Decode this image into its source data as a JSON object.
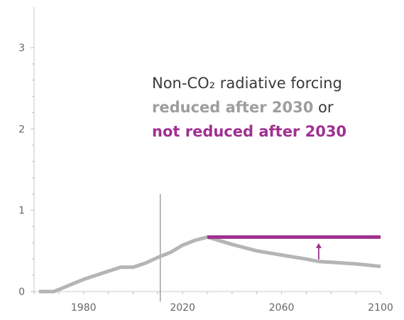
{
  "chart_data": {
    "type": "line",
    "title": "",
    "xlabel": "",
    "ylabel": "",
    "xlim": [
      1960,
      2100
    ],
    "ylim": [
      0,
      3.4
    ],
    "x_ticks": [
      1980,
      2020,
      2060,
      2100
    ],
    "y_ticks": [
      0,
      1,
      2,
      3
    ],
    "grid": false,
    "reference_line_x": 2011,
    "series": [
      {
        "color": "#b5b5b5",
        "x": [
          1962,
          1968,
          1972,
          1976,
          1980,
          1985,
          1990,
          1995,
          2000,
          2005,
          2010,
          2015,
          2020,
          2025,
          2030,
          2040,
          2050,
          2060,
          2070,
          2075,
          2080,
          2090,
          2100
        ],
        "y": [
          0.0,
          0.0,
          0.05,
          0.1,
          0.15,
          0.2,
          0.25,
          0.3,
          0.3,
          0.35,
          0.42,
          0.48,
          0.57,
          0.63,
          0.67,
          0.58,
          0.5,
          0.45,
          0.4,
          0.37,
          0.36,
          0.34,
          0.31
        ]
      },
      {
        "color": "#a0308f",
        "x": [
          2030,
          2100
        ],
        "y": [
          0.67,
          0.67
        ]
      }
    ],
    "annotation": {
      "line1": "Non-CO₂ radiative forcing",
      "line2_grey": "reduced after 2030",
      "line2_suffix": " or",
      "line3_purple": "not reduced after 2030"
    },
    "arrow": {
      "x": 2075,
      "from": 0.37,
      "to": 0.64,
      "color": "#a0308f"
    }
  }
}
